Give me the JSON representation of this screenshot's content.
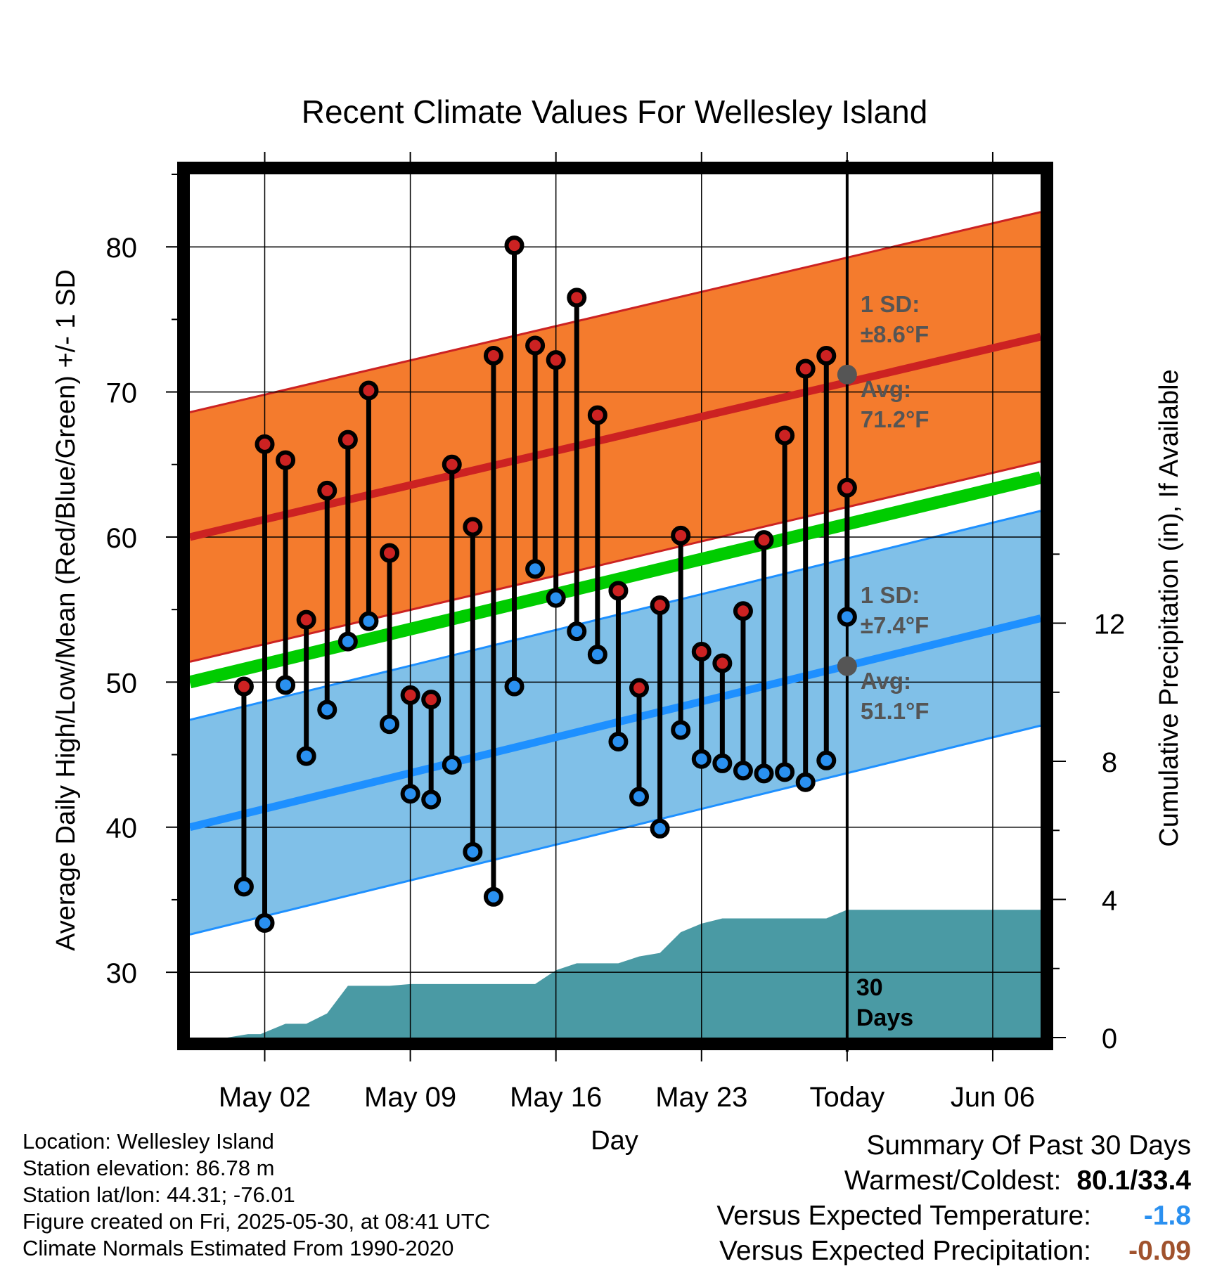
{
  "chart_data": {
    "type": "line",
    "title": "Recent Climate Values For Wellesley Island",
    "xlabel": "Day",
    "ylabel": "Average Daily High/Low/Mean (Red/Blue/Green) +/- 1 SD",
    "ylabel_right": "Cumulative Precipitation (in), If Available",
    "ylim": [
      25.5,
      85
    ],
    "ylim_right": [
      0,
      25
    ],
    "grid": true,
    "x_start": "2025-04-30",
    "x_ticks": [
      {
        "day": 2,
        "label": "May 02"
      },
      {
        "day": 9,
        "label": "May 09"
      },
      {
        "day": 16,
        "label": "May 16"
      },
      {
        "day": 23,
        "label": "May 23"
      },
      {
        "day": 30,
        "label": "Today"
      },
      {
        "day": 37,
        "label": "Jun 06"
      }
    ],
    "y_ticks": [
      30,
      40,
      50,
      60,
      70,
      80
    ],
    "y_ticks_right": [
      0,
      4,
      8,
      12
    ],
    "x_range": [
      -1.6,
      39.3
    ],
    "today": 30,
    "today_label": "30\nDays",
    "normals": {
      "high": {
        "start": 60.0,
        "end": 73.8,
        "sd": 8.6
      },
      "low": {
        "start": 40.0,
        "end": 54.4,
        "sd": 7.4
      },
      "mean": {
        "start": 50.0,
        "end": 64.1
      }
    },
    "annotations": {
      "high_sd": "1 SD:",
      "high_sd_value": "±8.6°F",
      "high_avg": "Avg:",
      "high_avg_value": "71.2°F",
      "high_avg_y": 71.2,
      "low_sd": "1 SD:",
      "low_sd_value": "±7.4°F",
      "low_avg": "Avg:",
      "low_avg_value": "51.1°F",
      "low_avg_y": 51.1
    },
    "days": [
      1,
      2,
      3,
      4,
      5,
      6,
      7,
      8,
      9,
      10,
      11,
      12,
      13,
      14,
      15,
      16,
      17,
      18,
      19,
      20,
      21,
      22,
      23,
      24,
      25,
      26,
      27,
      28,
      29,
      30
    ],
    "highs": [
      49.7,
      66.4,
      65.3,
      54.3,
      63.2,
      66.7,
      70.1,
      58.9,
      49.1,
      48.8,
      65.0,
      60.7,
      72.5,
      80.1,
      73.2,
      72.2,
      76.5,
      68.4,
      56.3,
      49.6,
      55.3,
      60.1,
      52.1,
      51.3,
      54.9,
      59.8,
      67.0,
      71.6,
      72.5,
      63.4
    ],
    "lows": [
      35.9,
      33.4,
      49.8,
      44.9,
      48.1,
      52.8,
      54.2,
      47.1,
      42.3,
      41.9,
      44.3,
      38.3,
      35.2,
      49.7,
      57.8,
      55.8,
      53.5,
      51.9,
      45.9,
      42.1,
      39.9,
      46.7,
      44.7,
      44.4,
      43.9,
      43.7,
      43.8,
      43.1,
      44.6,
      54.5
    ],
    "precip_cumulative": {
      "days": [
        -1.6,
        0.2,
        1.2,
        1.8,
        3.0,
        4.0,
        5.0,
        6.0,
        7.0,
        8.0,
        9.0,
        10.0,
        15.0,
        16.0,
        17.0,
        18.0,
        19.0,
        20.0,
        21.0,
        22.0,
        23.0,
        24.0,
        25.0,
        26.0,
        27.0,
        28.0,
        29.0,
        30.0,
        39.3
      ],
      "values": [
        0,
        0,
        0.1,
        0.1,
        0.4,
        0.4,
        0.7,
        1.5,
        1.5,
        1.5,
        1.55,
        1.55,
        1.55,
        1.95,
        2.15,
        2.15,
        2.15,
        2.35,
        2.45,
        3.05,
        3.3,
        3.45,
        3.45,
        3.45,
        3.45,
        3.45,
        3.45,
        3.7,
        3.7
      ]
    }
  },
  "colors": {
    "high_band": "#f47b2d",
    "high_line": "#cc2222",
    "low_band": "#80c0e8",
    "low_line": "#1e90ff",
    "mean_line": "#00cc00",
    "precip": "#4a9aa4",
    "high_dot": "#cc2222",
    "low_dot": "#2a90f0",
    "annotation": "#555555",
    "temp_anomaly": "#2a90f0",
    "precip_anomaly": "#a0522d"
  },
  "info": {
    "location": "Location: Wellesley Island",
    "elevation": "Station elevation: 86.78 m",
    "latlon": "Station lat/lon: 44.31; -76.01",
    "created": "Figure created on Fri, 2025-05-30, at 08:41 UTC",
    "normals": "Climate Normals Estimated From 1990-2020"
  },
  "summary": {
    "title": "Summary Of Past 30 Days",
    "warm_cold_label": "Warmest/Coldest:",
    "warm_cold_value": "80.1/33.4",
    "temp_label": "Versus Expected Temperature:",
    "temp_value": "-1.8",
    "precip_label": "Versus Expected Precipitation:",
    "precip_value": "-0.09"
  }
}
